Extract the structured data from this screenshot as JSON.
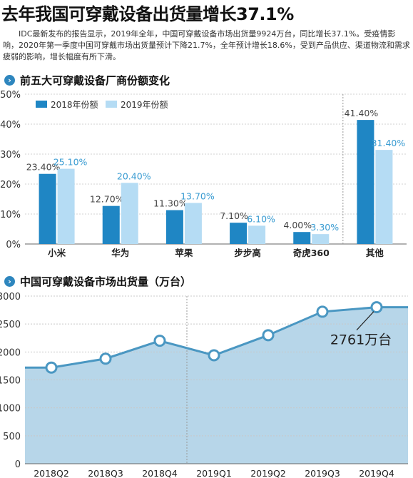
{
  "headline": "去年我国可穿戴设备出货量增长37.1%",
  "intro": "IDC最新发布的报告显示，2019年全年，中国可穿戴设备市场出货量9924万台，同比增长37.1%。受疫情影响，2020年第一季度中国可穿戴市场出货量预计下降21.7%，全年预计增长18.6%，受到产品供应、渠道物流和需求疲弱的影响，增长幅度有所下滑。",
  "sections": {
    "bar_title": "前五大可穿戴设备厂商份额变化",
    "line_title": "中国可穿戴设备市场出货量（万台）"
  },
  "colors": {
    "accent": "#2e86be",
    "bar2018": "#1f86c4",
    "bar2019": "#b5dcf4",
    "label2019": "#3a9cd2",
    "area": "#b7d6e9",
    "line": "#4a97c2"
  },
  "chart_data": [
    {
      "type": "bar",
      "title": "前五大可穿戴设备厂商份额变化",
      "categories": [
        "小米",
        "华为",
        "苹果",
        "步步高",
        "奇虎360",
        "其他"
      ],
      "series": [
        {
          "name": "2018年份额",
          "values": [
            23.4,
            12.7,
            11.3,
            7.1,
            4.0,
            41.4
          ],
          "labels": [
            "23.40%",
            "12.70%",
            "11.30%",
            "7.10%",
            "4.00%",
            "41.40%"
          ]
        },
        {
          "name": "2019年份额",
          "values": [
            25.1,
            20.4,
            13.7,
            6.1,
            3.3,
            31.4
          ],
          "labels": [
            "25.10%",
            "20.40%",
            "13.70%",
            "6.10%",
            "3.30%",
            "31.40%"
          ]
        }
      ],
      "yticks": [
        "0%",
        "10%",
        "20%",
        "30%",
        "40%",
        "50%"
      ],
      "ylim": [
        0,
        50
      ],
      "legend": "top-left",
      "grid": true
    },
    {
      "type": "area",
      "title": "中国可穿戴设备市场出货量（万台）",
      "categories": [
        "2018Q2",
        "2018Q3",
        "2018Q4",
        "2019Q1",
        "2019Q2",
        "2019Q3",
        "2019Q4"
      ],
      "values": [
        1720,
        1880,
        2200,
        1940,
        2300,
        2720,
        2800
      ],
      "yticks": [
        "0",
        "500",
        "1000",
        "1500",
        "2000",
        "2500",
        "3000"
      ],
      "ylim": [
        0,
        3000
      ],
      "annotation": "2761万台",
      "grid": true
    }
  ]
}
